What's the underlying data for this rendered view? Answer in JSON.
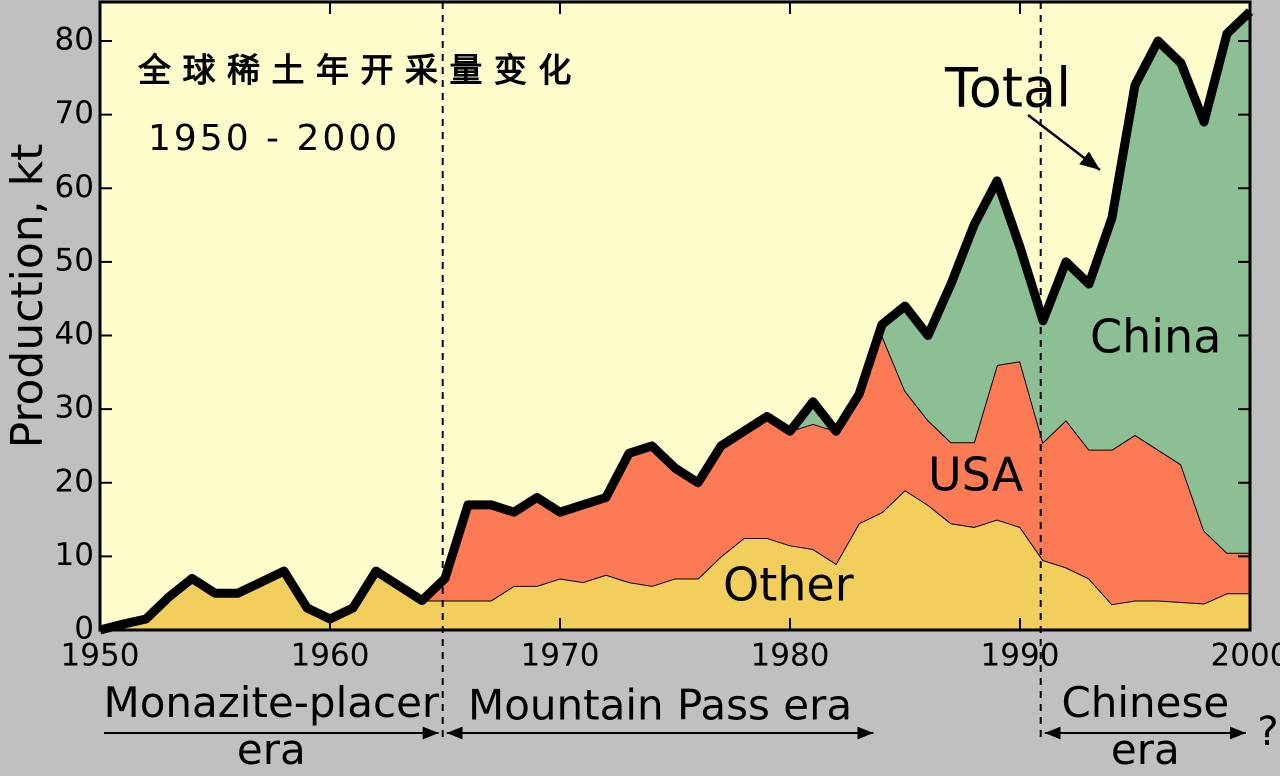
{
  "chart_data": {
    "type": "stacked_area",
    "title": "全 球 稀 土 年 开 采 量 变 化",
    "subtitle": "1950 - 2000",
    "ylabel": "Production, kt",
    "x": [
      1950,
      1951,
      1952,
      1953,
      1954,
      1955,
      1956,
      1957,
      1958,
      1959,
      1960,
      1961,
      1962,
      1963,
      1964,
      1965,
      1966,
      1967,
      1968,
      1969,
      1970,
      1971,
      1972,
      1973,
      1974,
      1975,
      1976,
      1977,
      1978,
      1979,
      1980,
      1981,
      1982,
      1983,
      1984,
      1985,
      1986,
      1987,
      1988,
      1989,
      1990,
      1991,
      1992,
      1993,
      1994,
      1995,
      1996,
      1997,
      1998,
      1999,
      2000
    ],
    "series": [
      {
        "name": "Other",
        "color": "#f2cf5d",
        "values": [
          0,
          0.8,
          1.5,
          4.5,
          7,
          5,
          5,
          6.5,
          8,
          3,
          1.5,
          3,
          8,
          6,
          4,
          4,
          4,
          4,
          6,
          6,
          7,
          6.5,
          7.5,
          6.5,
          6,
          7,
          7,
          10,
          12.5,
          12.5,
          11.5,
          11,
          9,
          14.5,
          16,
          19,
          17,
          14.5,
          14,
          15,
          14,
          9.5,
          8.5,
          7,
          3.5,
          4,
          4,
          3.8,
          3.6,
          5,
          5
        ]
      },
      {
        "name": "USA",
        "color": "#fc7b55",
        "values": [
          0,
          0,
          0,
          0,
          0,
          0,
          0,
          0,
          0,
          0,
          0,
          0,
          0,
          0,
          0,
          3,
          13,
          13,
          10,
          12,
          9,
          10.5,
          10.5,
          17.5,
          19,
          15,
          13,
          15,
          14.5,
          16.5,
          15.5,
          17,
          18,
          17.5,
          24,
          13.5,
          11.5,
          11,
          11.5,
          21,
          22.5,
          16,
          20,
          17.5,
          21,
          22.5,
          20.5,
          18.7,
          9.9,
          5.5,
          5.5
        ]
      },
      {
        "name": "China",
        "color": "#8cbf93",
        "values": [
          0,
          0,
          0,
          0,
          0,
          0,
          0,
          0,
          0,
          0,
          0,
          0,
          0,
          0,
          0,
          0,
          0,
          0,
          0,
          0,
          0,
          0,
          0,
          0,
          0,
          0,
          0,
          0,
          0,
          0,
          0,
          3,
          0,
          0,
          1.5,
          11.5,
          11.5,
          21.5,
          29.5,
          25,
          15.5,
          16.5,
          21.5,
          22.5,
          31.5,
          47.5,
          55.5,
          54.5,
          55.5,
          70.5,
          73.5
        ]
      }
    ],
    "total_label": "Total",
    "xlim": [
      1950,
      2000
    ],
    "xticks": [
      1950,
      1960,
      1970,
      1980,
      1990,
      2000
    ],
    "ylim": [
      0,
      85.3
    ],
    "yticks": [
      0,
      10,
      20,
      30,
      40,
      50,
      60,
      70,
      80
    ],
    "eras": [
      {
        "label": "Monazite-placer era",
        "start": 1950,
        "end": 1964.9
      },
      {
        "label": "Mountain Pass era",
        "start": 1964.9,
        "end": 1983.8
      },
      {
        "label": "Chinese era",
        "start": 1990.9,
        "end": 2000
      }
    ],
    "future_label": "?"
  }
}
